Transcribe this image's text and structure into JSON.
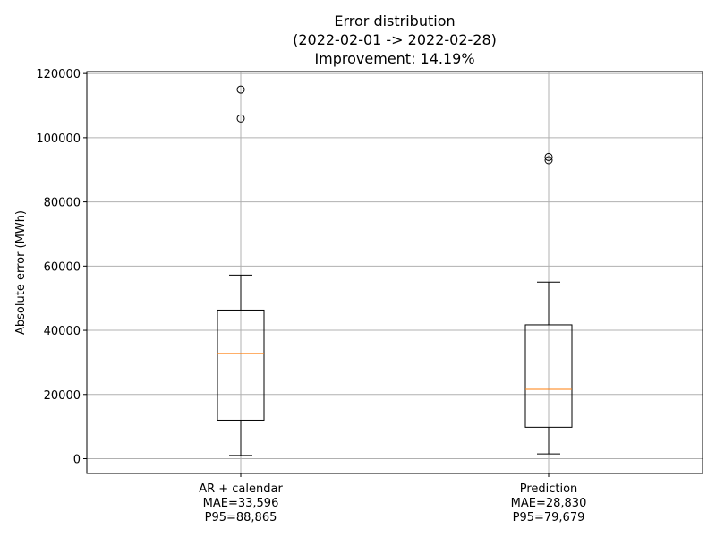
{
  "chart_data": {
    "type": "box",
    "title_lines": [
      "Error distribution",
      "(2022-02-01 -> 2022-02-28)",
      "Improvement: 14.19%"
    ],
    "xlabel": "",
    "ylabel": "Absolute error (MWh)",
    "ylim": [
      -4600,
      120600
    ],
    "y_ticks": [
      0,
      20000,
      40000,
      60000,
      80000,
      100000,
      120000
    ],
    "y_tick_labels": [
      "0",
      "20000",
      "40000",
      "60000",
      "80000",
      "100000",
      "120000"
    ],
    "grid": true,
    "colors": {
      "box": "#000000",
      "median": "#ff7f0e",
      "grid": "#b0b0b0"
    },
    "boxes": [
      {
        "label_lines": [
          "AR + calendar",
          "MAE=33,596",
          "P95=88,865"
        ],
        "whisker_low": 1000,
        "q1": 12000,
        "median": 32800,
        "q3": 46300,
        "whisker_high": 57200,
        "outliers": [
          106000,
          115000
        ]
      },
      {
        "label_lines": [
          "Prediction",
          "MAE=28,830",
          "P95=79,679"
        ],
        "whisker_low": 1500,
        "q1": 9800,
        "median": 21600,
        "q3": 41700,
        "whisker_high": 55000,
        "outliers": [
          93000,
          94000
        ]
      }
    ]
  }
}
